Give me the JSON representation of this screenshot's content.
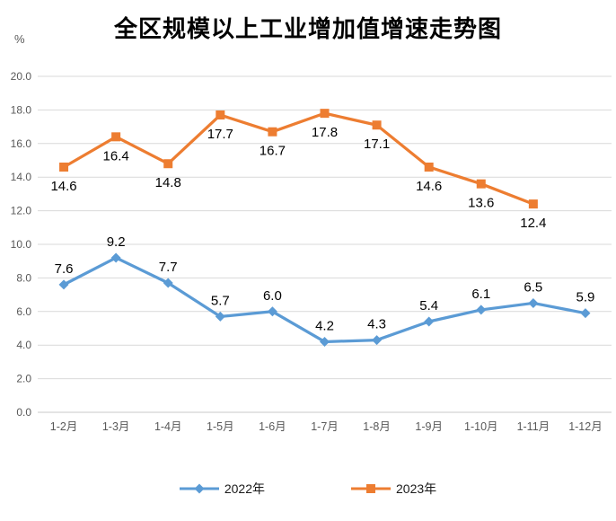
{
  "chart_data": {
    "type": "line",
    "title": "全区规模以上工业增加值增速走势图",
    "unit_label": "%",
    "categories": [
      "1-2月",
      "1-3月",
      "1-4月",
      "1-5月",
      "1-6月",
      "1-7月",
      "1-8月",
      "1-9月",
      "1-10月",
      "1-11月",
      "1-12月"
    ],
    "series": [
      {
        "name": "2022年",
        "color": "#5B9BD5",
        "marker": "diamond",
        "label_position": "above",
        "values": [
          7.6,
          9.2,
          7.7,
          5.7,
          6.0,
          4.2,
          4.3,
          5.4,
          6.1,
          6.5,
          5.9
        ]
      },
      {
        "name": "2023年",
        "color": "#ED7D31",
        "marker": "square",
        "label_position": "below",
        "values": [
          14.6,
          16.4,
          14.8,
          17.7,
          16.7,
          17.8,
          17.1,
          14.6,
          13.6,
          12.4
        ]
      }
    ],
    "ylim": [
      0,
      20
    ],
    "ystep": 2,
    "ytick_format_decimals": 1,
    "grid": true,
    "gridline_color": "#D9D9D9",
    "axis_text_color": "#595959",
    "data_label_color": "#000000",
    "legend_position": "bottom"
  }
}
